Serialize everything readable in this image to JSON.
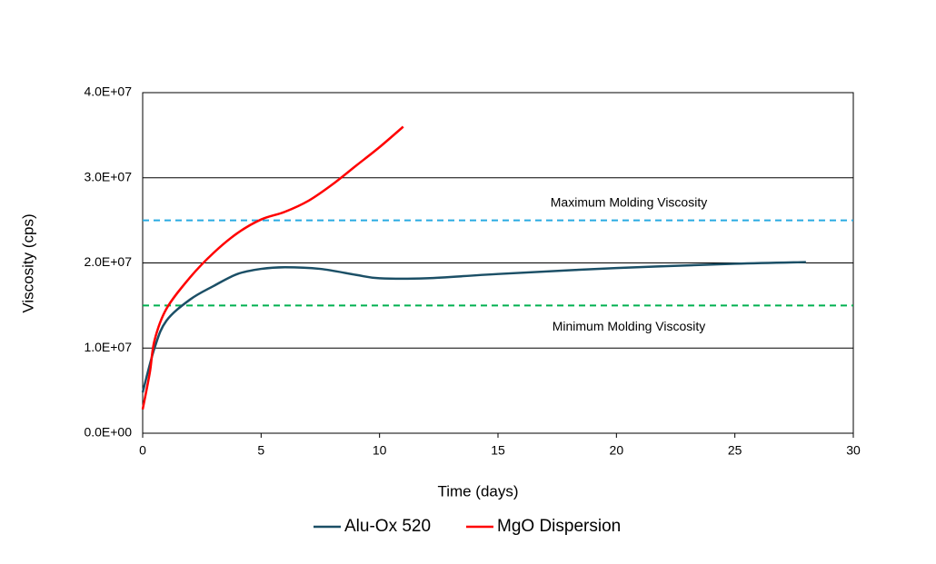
{
  "chart_data": {
    "type": "line",
    "x_label": "Time (days)",
    "y_label": "Viscosity (cps)",
    "xlim": [
      0,
      30
    ],
    "xticks": [
      0,
      5,
      10,
      15,
      20,
      25,
      30
    ],
    "ylim": [
      0,
      40000000
    ],
    "yticks": [
      {
        "value": 0,
        "label": "0.0E+00"
      },
      {
        "value": 10000000,
        "label": "1.0E+07"
      },
      {
        "value": 20000000,
        "label": "2.0E+07"
      },
      {
        "value": 30000000,
        "label": "3.0E+07"
      },
      {
        "value": 40000000,
        "label": "4.0E+07"
      }
    ],
    "grid": true,
    "reference_lines": [
      {
        "value": 25000000,
        "label": "Maximum Molding Viscosity",
        "color": "#29abe2"
      },
      {
        "value": 15000000,
        "label": "Minimum Molding Viscosity",
        "color": "#00b050"
      }
    ],
    "series": [
      {
        "name": "Alu-Ox 520",
        "color": "#1b4f66",
        "x": [
          0,
          0.5,
          1,
          2,
          3,
          4,
          5,
          6,
          7.5,
          9,
          10,
          12,
          15,
          20,
          25,
          28
        ],
        "values": [
          4800000,
          10000000,
          13200000,
          15700000,
          17300000,
          18700000,
          19300000,
          19500000,
          19300000,
          18600000,
          18200000,
          18200000,
          18700000,
          19400000,
          19900000,
          20100000
        ]
      },
      {
        "name": "MgO Dispersion",
        "color": "#ff0000",
        "x": [
          0,
          0.3,
          0.5,
          1,
          2,
          3,
          4,
          5,
          6,
          7,
          8,
          9,
          10,
          11
        ],
        "values": [
          2800000,
          7100000,
          10900000,
          14600000,
          18300000,
          21200000,
          23500000,
          25100000,
          26000000,
          27300000,
          29200000,
          31400000,
          33600000,
          36000000
        ]
      }
    ]
  }
}
